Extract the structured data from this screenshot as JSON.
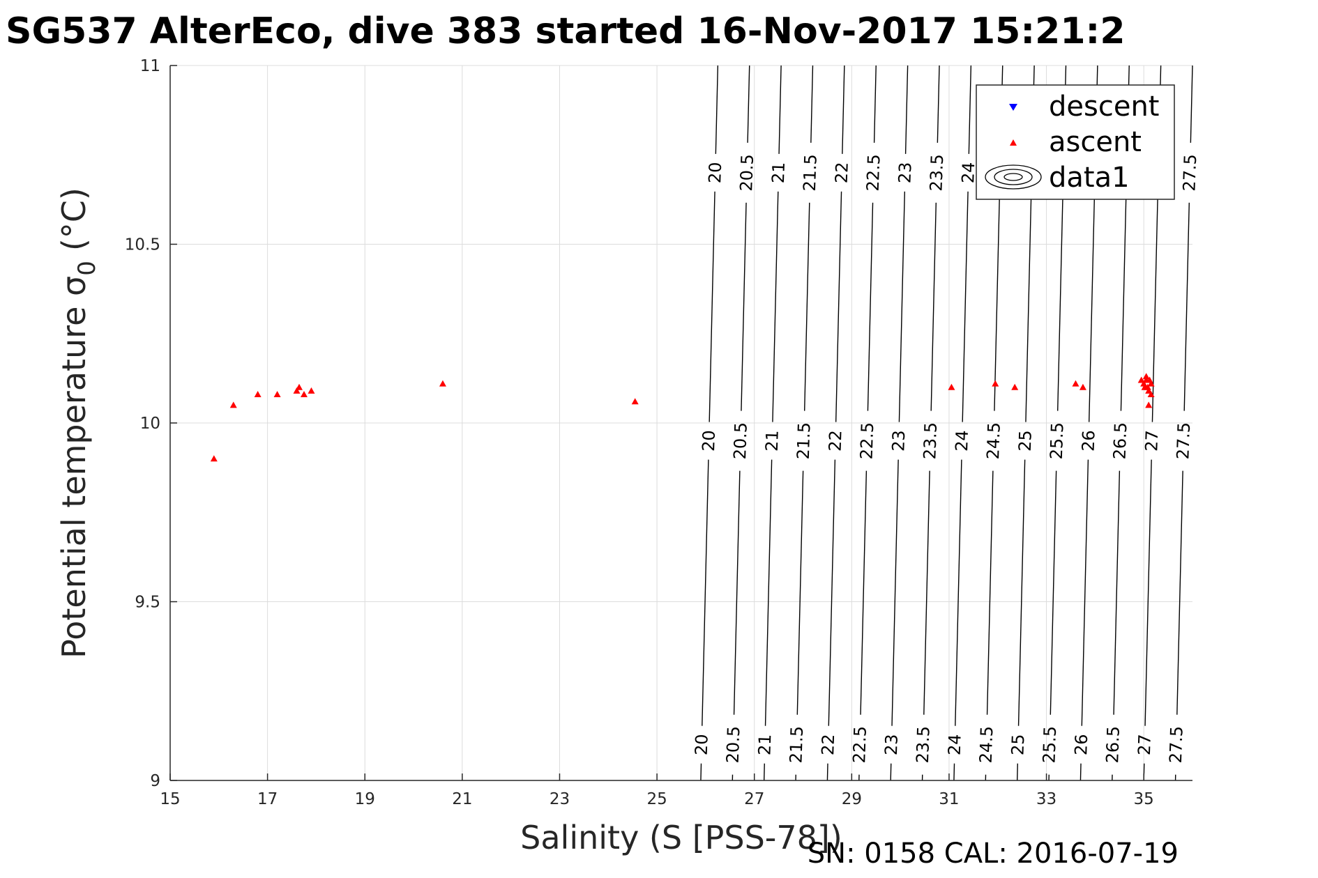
{
  "chart_data": {
    "type": "scatter",
    "title": "SG537 AlterEco, dive 383 started 16-Nov-2017 15:21:2",
    "xlabel": "Salinity (S [PSS-78])",
    "ylabel": "Potential temperature σ",
    "ylabel_sub": "0",
    "ylabel_unit": "(°C)",
    "xlim": [
      15,
      36
    ],
    "ylim": [
      9,
      11
    ],
    "x_ticks": [
      15,
      17,
      19,
      21,
      23,
      25,
      27,
      29,
      31,
      33,
      35
    ],
    "y_ticks": [
      9,
      9.5,
      10,
      10.5,
      11
    ],
    "x_tick_labels": [
      "15",
      "17",
      "19",
      "21",
      "23",
      "25",
      "27",
      "29",
      "31",
      "33",
      "35"
    ],
    "y_tick_labels": [
      "9",
      "9.5",
      "10",
      "10.5",
      "11"
    ],
    "grid": true,
    "legend": {
      "placement": "top-right",
      "entries": [
        "descent",
        "ascent",
        "data1"
      ]
    },
    "series": [
      {
        "name": "descent",
        "marker": "triangle-down",
        "color": "#0000ff",
        "points": []
      },
      {
        "name": "ascent",
        "marker": "triangle-up",
        "color": "#ff0000",
        "points": [
          [
            15.9,
            9.9
          ],
          [
            16.3,
            10.05
          ],
          [
            16.8,
            10.08
          ],
          [
            17.2,
            10.08
          ],
          [
            17.6,
            10.09
          ],
          [
            17.65,
            10.1
          ],
          [
            17.75,
            10.08
          ],
          [
            17.9,
            10.09
          ],
          [
            20.6,
            10.11
          ],
          [
            24.55,
            10.06
          ],
          [
            31.05,
            10.1
          ],
          [
            31.95,
            10.11
          ],
          [
            32.35,
            10.1
          ],
          [
            33.6,
            10.11
          ],
          [
            33.75,
            10.1
          ],
          [
            34.95,
            10.12
          ],
          [
            35.0,
            10.11
          ],
          [
            35.02,
            10.1
          ],
          [
            35.05,
            10.13
          ],
          [
            35.05,
            10.12
          ],
          [
            35.08,
            10.1
          ],
          [
            35.1,
            10.09
          ],
          [
            35.12,
            10.12
          ],
          [
            35.15,
            10.11
          ],
          [
            35.15,
            10.08
          ],
          [
            35.1,
            10.05
          ]
        ]
      }
    ],
    "contours": {
      "name": "data1",
      "levels": [
        "20",
        "20.5",
        "21",
        "21.5",
        "22",
        "22.5",
        "23",
        "23.5",
        "24",
        "24.5",
        "25",
        "25.5",
        "26",
        "26.5",
        "27",
        "27.5"
      ],
      "salinity_at_9C": [
        25.9,
        26.55,
        27.2,
        27.85,
        28.5,
        29.15,
        29.8,
        30.45,
        31.1,
        31.75,
        32.4,
        33.05,
        33.7,
        34.35,
        35.0,
        35.65
      ],
      "salinity_at_11C": [
        26.25,
        26.9,
        27.55,
        28.2,
        28.85,
        29.5,
        30.15,
        30.8,
        31.45,
        32.1,
        32.75,
        33.4,
        34.05,
        34.7,
        35.35,
        36.0
      ],
      "label_rows_temperature": [
        9.1,
        9.95,
        10.7
      ],
      "top_row_levels": [
        "20",
        "20.5",
        "21",
        "21.5",
        "22",
        "22.5",
        "23",
        "23.5",
        "24",
        "27.5"
      ]
    }
  },
  "footer": "SN: 0158  CAL: 2016-07-19"
}
